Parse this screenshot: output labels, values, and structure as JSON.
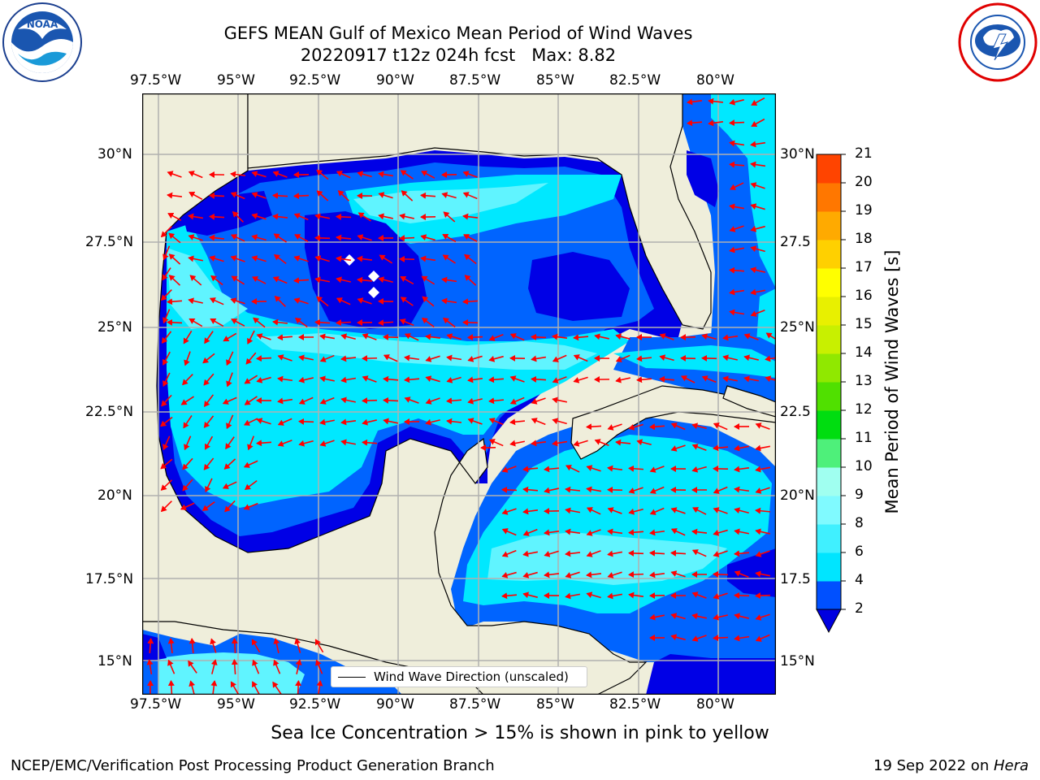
{
  "title_line1": "GEFS MEAN Gulf of Mexico Mean Period of Wind Waves",
  "title_line2": "20220917 t12z 024h fcst   Max: 8.82",
  "x_ticks": [
    "97.5°W",
    "95°W",
    "92.5°W",
    "90°W",
    "87.5°W",
    "85°W",
    "82.5°W",
    "80°W"
  ],
  "y_ticks_left": [
    "30°N",
    "27.5°N",
    "25°N",
    "22.5°N",
    "20°N",
    "17.5°N",
    "15°N"
  ],
  "y_ticks_right": [
    "30°N",
    "27.5",
    "25°N",
    "22.5",
    "20°N",
    "17.5",
    "15°N"
  ],
  "legend_label": "Wind Wave Direction (unscaled)",
  "colorbar": {
    "label": "Mean Period of Wind Waves [s]",
    "ticks": [
      "2",
      "4",
      "6",
      "8",
      "9",
      "10",
      "11",
      "12",
      "13",
      "14",
      "15",
      "16",
      "17",
      "18",
      "19",
      "20",
      "21"
    ],
    "colors": [
      "#0050ff",
      "#00e5ff",
      "#40f0ff",
      "#80faff",
      "#a0fff0",
      "#4ef07a",
      "#00dd10",
      "#50e000",
      "#90e800",
      "#c8f000",
      "#e8f000",
      "#ffff00",
      "#ffd000",
      "#ffaa00",
      "#ff7700",
      "#ff4400",
      "#ff0000"
    ],
    "under_color": "#0000e0"
  },
  "subtitle": "Sea Ice Concentration > 15% is shown in pink to yellow",
  "credit_left": "NCEP/EMC/Verification Post Processing Product Generation Branch",
  "credit_right_date": "19 Sep 2022 on ",
  "credit_right_host": "Hera",
  "colors": {
    "land": "#efeedb",
    "level1": "#0000e6",
    "level2": "#0064ff",
    "level3": "#00e8ff",
    "level4": "#60f4ff",
    "arrow": "#ff0000",
    "grid": "#b0b0b0"
  }
}
